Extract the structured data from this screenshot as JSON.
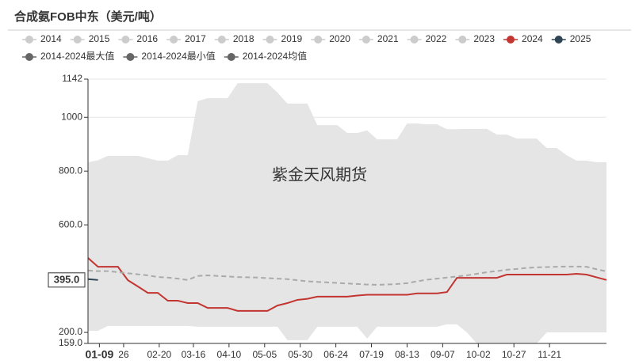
{
  "chart_data": {
    "type": "line",
    "title": "合成氨FOB中东（美元/吨）",
    "watermark": "紫金天风期货",
    "hidden_series": [
      {
        "name": "2014",
        "color": "#cccccc"
      },
      {
        "name": "2015",
        "color": "#cccccc"
      },
      {
        "name": "2016",
        "color": "#cccccc"
      },
      {
        "name": "2017",
        "color": "#cccccc"
      },
      {
        "name": "2018",
        "color": "#cccccc"
      },
      {
        "name": "2019",
        "color": "#cccccc"
      },
      {
        "name": "2020",
        "color": "#cccccc"
      },
      {
        "name": "2021",
        "color": "#cccccc"
      },
      {
        "name": "2022",
        "color": "#cccccc"
      },
      {
        "name": "2023",
        "color": "#cccccc"
      }
    ],
    "x": [
      1,
      8,
      15,
      22,
      29,
      36,
      43,
      50,
      57,
      64,
      71,
      78,
      85,
      92,
      99,
      106,
      113,
      120,
      127,
      134,
      141,
      148,
      155,
      162,
      169,
      176,
      183,
      190,
      197,
      204,
      211,
      218,
      225,
      232,
      239,
      246,
      253,
      260,
      267,
      274,
      281,
      288,
      295,
      302,
      309,
      316,
      323,
      330,
      337,
      344,
      351,
      358,
      365
    ],
    "series": [
      {
        "name": "2024",
        "color": "#c23531",
        "style": "line",
        "values": [
          477,
          444,
          444,
          444,
          394,
          371,
          347,
          347,
          318,
          318,
          309,
          309,
          291,
          291,
          291,
          280,
          280,
          280,
          280,
          300,
          309,
          321,
          325,
          333,
          333,
          333,
          333,
          337,
          340,
          340,
          340,
          340,
          340,
          345,
          345,
          345,
          350,
          403,
          403,
          403,
          403,
          403,
          415,
          415,
          415,
          415,
          415,
          415,
          415,
          418,
          415,
          405,
          395
        ]
      },
      {
        "name": "2025",
        "color": "#2f4554",
        "style": "line",
        "values": [
          398,
          395,
          null,
          null,
          null,
          null,
          null,
          null,
          null,
          null,
          null,
          null,
          null,
          null,
          null,
          null,
          null,
          null,
          null,
          null,
          null,
          null,
          null,
          null,
          null,
          null,
          null,
          null,
          null,
          null,
          null,
          null,
          null,
          null,
          null,
          null,
          null,
          null,
          null,
          null,
          null,
          null,
          null,
          null,
          null,
          null,
          null,
          null,
          null,
          null,
          null,
          null,
          null
        ]
      },
      {
        "name": "2014-2024最大值",
        "color": "#666666",
        "fill": "#e5e5e5",
        "style": "area",
        "values": [
          833,
          840,
          857,
          857,
          857,
          857,
          848,
          839,
          839,
          859,
          859,
          1060,
          1071,
          1071,
          1071,
          1127,
          1127,
          1127,
          1127,
          1092,
          1051,
          1051,
          1051,
          971,
          971,
          971,
          942,
          942,
          951,
          918,
          918,
          918,
          977,
          977,
          974,
          974,
          956,
          956,
          957,
          957,
          957,
          936,
          936,
          921,
          921,
          921,
          886,
          886,
          859,
          839,
          839,
          833,
          833
        ]
      },
      {
        "name": "2014-2024最小值",
        "color": "#666666",
        "fill": "#ffffff",
        "style": "area",
        "values": [
          206,
          206,
          224,
          224,
          224,
          224,
          224,
          224,
          224,
          224,
          224,
          221,
          221,
          221,
          221,
          221,
          221,
          221,
          221,
          221,
          171,
          171,
          171,
          221,
          221,
          221,
          221,
          221,
          177,
          221,
          221,
          221,
          221,
          221,
          221,
          221,
          230,
          230,
          200,
          159,
          159,
          159,
          159,
          159,
          159,
          159,
          200,
          200,
          200,
          200,
          200,
          200,
          200
        ]
      },
      {
        "name": "2014-2024均值",
        "color": "#666666",
        "line_color": "#aaaaaa",
        "style": "dashed",
        "values": [
          430,
          428,
          428,
          424,
          420,
          416,
          412,
          406,
          404,
          400,
          395,
          410,
          412,
          410,
          408,
          406,
          405,
          404,
          402,
          400,
          398,
          394,
          390,
          388,
          386,
          384,
          382,
          380,
          378,
          377,
          378,
          380,
          383,
          390,
          396,
          400,
          404,
          408,
          412,
          418,
          424,
          428,
          433,
          436,
          440,
          442,
          443,
          444,
          445,
          445,
          444,
          435,
          427
        ]
      }
    ],
    "xlim": [
      1,
      365
    ],
    "xticks": [
      {
        "value": 9,
        "label": "01-09"
      },
      {
        "value": 26,
        "label": "26"
      },
      {
        "value": 51,
        "label": "02-20"
      },
      {
        "value": 75,
        "label": "03-16"
      },
      {
        "value": 100,
        "label": "04-10"
      },
      {
        "value": 125,
        "label": "05-05"
      },
      {
        "value": 150,
        "label": "05-30"
      },
      {
        "value": 175,
        "label": "06-24"
      },
      {
        "value": 200,
        "label": "07-19"
      },
      {
        "value": 225,
        "label": "08-13"
      },
      {
        "value": 250,
        "label": "09-07"
      },
      {
        "value": 275,
        "label": "10-02"
      },
      {
        "value": 300,
        "label": "10-27"
      },
      {
        "value": 325,
        "label": "11-21"
      }
    ],
    "ylim": [
      159,
      1142
    ],
    "yticks": [
      {
        "value": 159,
        "label": "159.0"
      },
      {
        "value": 200,
        "label": "200.0"
      },
      {
        "value": 600,
        "label": "600.0"
      },
      {
        "value": 800,
        "label": "800.0"
      },
      1000,
      1142
    ],
    "marker": {
      "value": 395,
      "label": "395.0"
    },
    "grid": true
  }
}
